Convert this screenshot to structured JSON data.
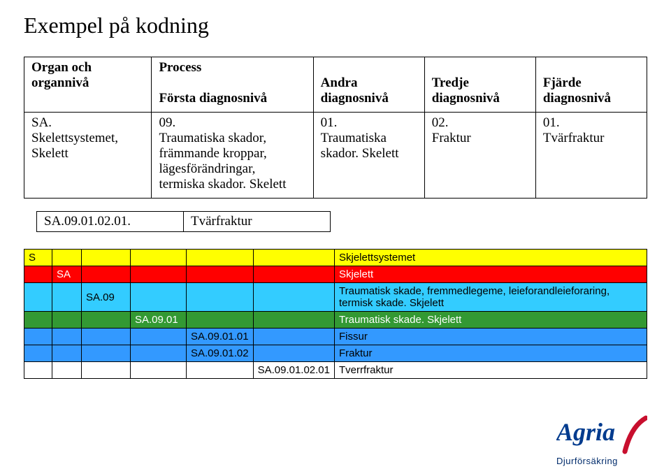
{
  "title": "Exempel på kodning",
  "defs": {
    "headers": {
      "col1a": "Organ och",
      "col1b": "organnivå",
      "col2": "Process",
      "col2b_a": "Första diagnosnivå",
      "col3a": "Andra",
      "col3b": "diagnosnivå",
      "col4a": "Tredje",
      "col4b": "diagnosnivå",
      "col5a": "Fjärde",
      "col5b": "diagnosnivå"
    },
    "row": {
      "col1a": "SA.",
      "col1b": "Skelettsystemet,",
      "col1c": "Skelett",
      "col2a": "09.",
      "col2b": "Traumatiska skador,",
      "col2c": "främmande kroppar,",
      "col2d": "lägesförändringar,",
      "col2e": "termiska skador. Skelett",
      "col3a": "01.",
      "col3b": "Traumatiska",
      "col3c": "skador. Skelett",
      "col4a": "02.",
      "col4b": "Fraktur",
      "col5a": "01.",
      "col5b": "Tvärfraktur"
    }
  },
  "codeline": {
    "code": "SA.09.01.02.01.",
    "label": "Tvärfraktur"
  },
  "grid": {
    "rows": [
      {
        "bg": "bg-yellow",
        "cells": [
          "S",
          "",
          "",
          "",
          "",
          "",
          "Skjelettsystemet"
        ]
      },
      {
        "bg": "bg-red",
        "cells": [
          "",
          "SA",
          "",
          "",
          "",
          "",
          "Skjelett"
        ]
      },
      {
        "bg": "bg-lblue",
        "cells": [
          "",
          "",
          "SA.09",
          "",
          "",
          "",
          "Traumatisk skade, fremmedlegeme, leieforandleieforaring, termisk skade. Skjelett"
        ]
      },
      {
        "bg": "bg-green",
        "cells": [
          "",
          "",
          "",
          "SA.09.01",
          "",
          "",
          "Traumatisk skade. Skjelett"
        ]
      },
      {
        "bg": "bg-mblue",
        "cells": [
          "",
          "",
          "",
          "",
          "SA.09.01.01",
          "",
          "Fissur"
        ]
      },
      {
        "bg": "bg-mblue",
        "cells": [
          "",
          "",
          "",
          "",
          "SA.09.01.02",
          "",
          "Fraktur"
        ]
      },
      {
        "bg": "",
        "cells": [
          "",
          "",
          "",
          "",
          "",
          "SA.09.01.02.01",
          "Tverrfraktur"
        ]
      }
    ]
  },
  "logo": {
    "brand": "Agria",
    "sub": "Djurförsäkring",
    "brand_color": "#003b8e",
    "arc_color": "#c80f2e"
  }
}
